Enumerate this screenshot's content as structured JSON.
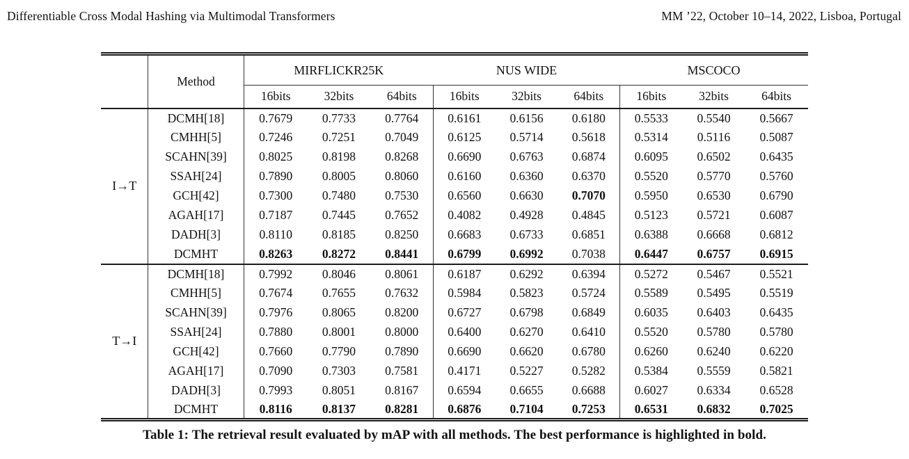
{
  "page_header": {
    "left_title": "Differentiable Cross Modal Hashing via Multimodal Transformers",
    "right_conference": "MM ’22, October 10–14, 2022, Lisboa, Portugal"
  },
  "table": {
    "method_header": "Method",
    "groups": [
      "MIRFLICKR25K",
      "NUS WIDE",
      "MSCOCO"
    ],
    "bit_columns": [
      "16bits",
      "32bits",
      "64bits"
    ],
    "blocks": [
      {
        "label": "I→T",
        "rows": [
          {
            "method": "DCMH[18]",
            "values": [
              "0.7679",
              "0.7733",
              "0.7764",
              "0.6161",
              "0.6156",
              "0.6180",
              "0.5533",
              "0.5540",
              "0.5667"
            ],
            "bold": [
              0,
              0,
              0,
              0,
              0,
              0,
              0,
              0,
              0
            ]
          },
          {
            "method": "CMHH[5]",
            "values": [
              "0.7246",
              "0.7251",
              "0.7049",
              "0.6125",
              "0.5714",
              "0.5618",
              "0.5314",
              "0.5116",
              "0.5087"
            ],
            "bold": [
              0,
              0,
              0,
              0,
              0,
              0,
              0,
              0,
              0
            ]
          },
          {
            "method": "SCAHN[39]",
            "values": [
              "0.8025",
              "0.8198",
              "0.8268",
              "0.6690",
              "0.6763",
              "0.6874",
              "0.6095",
              "0.6502",
              "0.6435"
            ],
            "bold": [
              0,
              0,
              0,
              0,
              0,
              0,
              0,
              0,
              0
            ]
          },
          {
            "method": "SSAH[24]",
            "values": [
              "0.7890",
              "0.8005",
              "0.8060",
              "0.6160",
              "0.6360",
              "0.6370",
              "0.5520",
              "0.5770",
              "0.5760"
            ],
            "bold": [
              0,
              0,
              0,
              0,
              0,
              0,
              0,
              0,
              0
            ]
          },
          {
            "method": "GCH[42]",
            "values": [
              "0.7300",
              "0.7480",
              "0.7530",
              "0.6560",
              "0.6630",
              "0.7070",
              "0.5950",
              "0.6530",
              "0.6790"
            ],
            "bold": [
              0,
              0,
              0,
              0,
              0,
              1,
              0,
              0,
              0
            ]
          },
          {
            "method": "AGAH[17]",
            "values": [
              "0.7187",
              "0.7445",
              "0.7652",
              "0.4082",
              "0.4928",
              "0.4845",
              "0.5123",
              "0.5721",
              "0.6087"
            ],
            "bold": [
              0,
              0,
              0,
              0,
              0,
              0,
              0,
              0,
              0
            ]
          },
          {
            "method": "DADH[3]",
            "values": [
              "0.8110",
              "0.8185",
              "0.8250",
              "0.6683",
              "0.6733",
              "0.6851",
              "0.6388",
              "0.6668",
              "0.6812"
            ],
            "bold": [
              0,
              0,
              0,
              0,
              0,
              0,
              0,
              0,
              0
            ]
          },
          {
            "method": "DCMHT",
            "values": [
              "0.8263",
              "0.8272",
              "0.8441",
              "0.6799",
              "0.6992",
              "0.7038",
              "0.6447",
              "0.6757",
              "0.6915"
            ],
            "bold": [
              1,
              1,
              1,
              1,
              1,
              0,
              1,
              1,
              1
            ]
          }
        ]
      },
      {
        "label": "T→I",
        "rows": [
          {
            "method": "DCMH[18]",
            "values": [
              "0.7992",
              "0.8046",
              "0.8061",
              "0.6187",
              "0.6292",
              "0.6394",
              "0.5272",
              "0.5467",
              "0.5521"
            ],
            "bold": [
              0,
              0,
              0,
              0,
              0,
              0,
              0,
              0,
              0
            ]
          },
          {
            "method": "CMHH[5]",
            "values": [
              "0.7674",
              "0.7655",
              "0.7632",
              "0.5984",
              "0.5823",
              "0.5724",
              "0.5589",
              "0.5495",
              "0.5519"
            ],
            "bold": [
              0,
              0,
              0,
              0,
              0,
              0,
              0,
              0,
              0
            ]
          },
          {
            "method": "SCAHN[39]",
            "values": [
              "0.7976",
              "0.8065",
              "0.8200",
              "0.6727",
              "0.6798",
              "0.6849",
              "0.6035",
              "0.6403",
              "0.6435"
            ],
            "bold": [
              0,
              0,
              0,
              0,
              0,
              0,
              0,
              0,
              0
            ]
          },
          {
            "method": "SSAH[24]",
            "values": [
              "0.7880",
              "0.8001",
              "0.8000",
              "0.6400",
              "0.6270",
              "0.6410",
              "0.5520",
              "0.5780",
              "0.5780"
            ],
            "bold": [
              0,
              0,
              0,
              0,
              0,
              0,
              0,
              0,
              0
            ]
          },
          {
            "method": "GCH[42]",
            "values": [
              "0.7660",
              "0.7790",
              "0.7890",
              "0.6690",
              "0.6620",
              "0.6780",
              "0.6260",
              "0.6240",
              "0.6220"
            ],
            "bold": [
              0,
              0,
              0,
              0,
              0,
              0,
              0,
              0,
              0
            ]
          },
          {
            "method": "AGAH[17]",
            "values": [
              "0.7090",
              "0.7303",
              "0.7581",
              "0.4171",
              "0.5227",
              "0.5282",
              "0.5384",
              "0.5559",
              "0.5821"
            ],
            "bold": [
              0,
              0,
              0,
              0,
              0,
              0,
              0,
              0,
              0
            ]
          },
          {
            "method": "DADH[3]",
            "values": [
              "0.7993",
              "0.8051",
              "0.8167",
              "0.6594",
              "0.6655",
              "0.6688",
              "0.6027",
              "0.6334",
              "0.6528"
            ],
            "bold": [
              0,
              0,
              0,
              0,
              0,
              0,
              0,
              0,
              0
            ]
          },
          {
            "method": "DCMHT",
            "values": [
              "0.8116",
              "0.8137",
              "0.8281",
              "0.6876",
              "0.7104",
              "0.7253",
              "0.6531",
              "0.6832",
              "0.7025"
            ],
            "bold": [
              1,
              1,
              1,
              1,
              1,
              1,
              1,
              1,
              1
            ]
          }
        ]
      }
    ],
    "caption": "Table 1: The retrieval result evaluated by mAP with all methods. The best performance is highlighted in bold."
  }
}
